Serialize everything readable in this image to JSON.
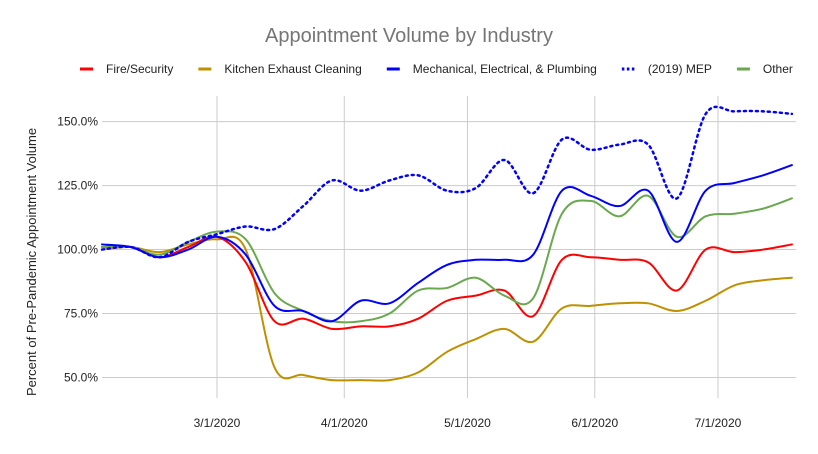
{
  "chart_data": {
    "type": "line",
    "title": "Appointment Volume by Industry",
    "xlabel": "",
    "ylabel": "Percent of Pre-Pandemic Appointment Volume",
    "x_ticks": [
      "3/1/2020",
      "4/1/2020",
      "5/1/2020",
      "6/1/2020",
      "7/1/2020"
    ],
    "y_ticks": [
      "50.0%",
      "75.0%",
      "100.0%",
      "125.0%",
      "150.0%"
    ],
    "ylim": [
      42,
      160
    ],
    "xlim": [
      "2020-02-02",
      "2020-07-20"
    ],
    "grid": true,
    "legend": "top",
    "x": [
      "2020-02-02",
      "2020-02-09",
      "2020-02-16",
      "2020-02-23",
      "2020-03-01",
      "2020-03-08",
      "2020-03-15",
      "2020-03-22",
      "2020-03-29",
      "2020-04-05",
      "2020-04-12",
      "2020-04-19",
      "2020-04-26",
      "2020-05-03",
      "2020-05-10",
      "2020-05-17",
      "2020-05-24",
      "2020-05-31",
      "2020-06-07",
      "2020-06-14",
      "2020-06-21",
      "2020-06-28",
      "2020-07-05",
      "2020-07-12",
      "2020-07-19"
    ],
    "series": [
      {
        "name": "Fire/Security",
        "color": "#ff0000",
        "dash": "solid",
        "values": [
          101,
          101,
          97,
          101,
          105,
          95,
          72,
          73,
          69,
          70,
          70,
          73,
          80,
          82,
          84,
          74,
          96,
          97,
          96,
          95,
          84,
          100,
          99,
          100,
          102
        ]
      },
      {
        "name": "Kitchen Exhaust Cleaning",
        "color": "#bf9000",
        "dash": "solid",
        "values": [
          100,
          101,
          99,
          102,
          104,
          100,
          54,
          51,
          49,
          49,
          49,
          52,
          60,
          65,
          69,
          64,
          77,
          78,
          79,
          79,
          76,
          80,
          86,
          88,
          89
        ]
      },
      {
        "name": "Mechanical, Electrical, & Plumbing",
        "color": "#0000ff",
        "dash": "solid",
        "values": [
          102,
          101,
          97,
          100,
          105,
          98,
          78,
          76,
          72,
          80,
          79,
          87,
          94,
          96,
          96,
          98,
          123,
          121,
          117,
          123,
          103,
          123,
          126,
          129,
          133
        ]
      },
      {
        "name": "(2019) MEP",
        "color": "#0000ff",
        "dash": "dotted",
        "values": [
          100,
          101,
          97,
          103,
          106,
          109,
          108,
          117,
          127,
          123,
          127,
          129,
          123,
          124,
          135,
          122,
          143,
          139,
          141,
          141,
          120,
          153,
          154,
          154,
          153
        ]
      },
      {
        "name": "Other",
        "color": "#6aa84f",
        "dash": "solid",
        "values": [
          101,
          101,
          98,
          103,
          107,
          104,
          83,
          76,
          72,
          72,
          75,
          84,
          85,
          89,
          82,
          81,
          114,
          119,
          113,
          121,
          105,
          113,
          114,
          116,
          120
        ]
      }
    ]
  }
}
